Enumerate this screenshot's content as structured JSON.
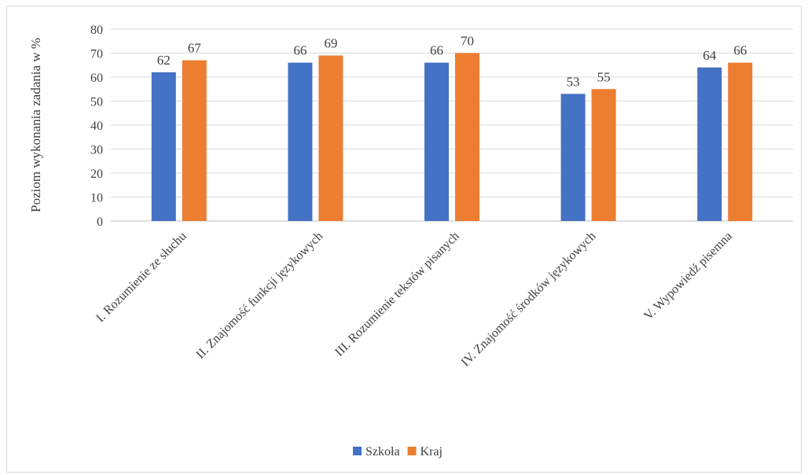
{
  "chart_data": {
    "type": "bar",
    "title": "",
    "xlabel": "",
    "ylabel": "Poziom wykonania zadania w %",
    "ylim": [
      0,
      80
    ],
    "yticks": [
      0,
      10,
      20,
      30,
      40,
      50,
      60,
      70,
      80
    ],
    "grid": true,
    "legend_position": "bottom",
    "categories": [
      "I. Rozumienie ze słuchu",
      "II. Znajomość funkcji językowych",
      "III. Rozumienie tekstów pisanych",
      "IV. Znajomość środków językowych",
      "V. Wypowiedź pisemna"
    ],
    "series": [
      {
        "name": "Szkoła",
        "color": "#4472c4",
        "values": [
          62,
          66,
          66,
          53,
          64
        ]
      },
      {
        "name": "Kraj",
        "color": "#ed7d31",
        "values": [
          67,
          69,
          70,
          55,
          66
        ]
      }
    ]
  }
}
